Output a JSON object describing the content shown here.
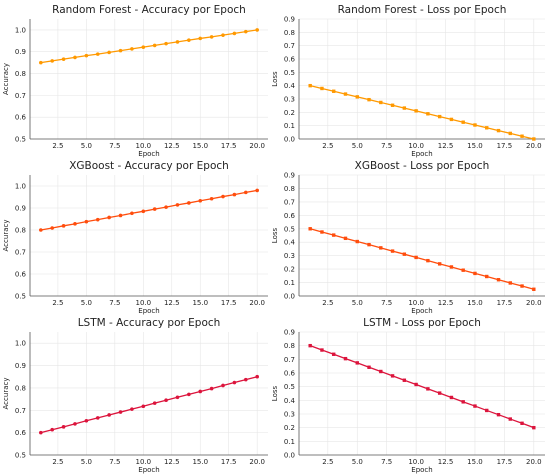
{
  "chart_data": [
    {
      "type": "line",
      "title": "Random Forest - Accuracy por Epoch",
      "xlabel": "Epoch",
      "ylabel": "Accuracy",
      "xlim": [
        0.05,
        20.95
      ],
      "ylim": [
        0.5,
        1.05
      ],
      "x_ticks": [
        2.5,
        5.0,
        7.5,
        10.0,
        12.5,
        15.0,
        17.5,
        20.0
      ],
      "x_tick_labels": [
        "2.5",
        "5.0",
        "7.5",
        "10.0",
        "12.5",
        "15.0",
        "17.5",
        "20.0"
      ],
      "y_ticks": [
        0.5,
        0.6,
        0.7,
        0.8,
        0.9,
        1.0
      ],
      "y_tick_labels": [
        "0.5",
        "0.6",
        "0.7",
        "0.8",
        "0.9",
        "1.0"
      ],
      "grid": true,
      "color": "#ff9900",
      "marker": "circle",
      "series": [
        {
          "name": "",
          "x": [
            1,
            2,
            3,
            4,
            5,
            6,
            7,
            8,
            9,
            10,
            11,
            12,
            13,
            14,
            15,
            16,
            17,
            18,
            19,
            20
          ],
          "values": [
            0.85,
            0.858,
            0.866,
            0.874,
            0.882,
            0.889,
            0.897,
            0.905,
            0.913,
            0.921,
            0.929,
            0.937,
            0.945,
            0.953,
            0.961,
            0.968,
            0.976,
            0.984,
            0.992,
            1.0
          ]
        }
      ]
    },
    {
      "type": "line",
      "title": "Random Forest - Loss por Epoch",
      "xlabel": "Epoch",
      "ylabel": "Loss",
      "xlim": [
        0.05,
        20.95
      ],
      "ylim": [
        0.0,
        0.9
      ],
      "x_ticks": [
        2.5,
        5.0,
        7.5,
        10.0,
        12.5,
        15.0,
        17.5,
        20.0
      ],
      "x_tick_labels": [
        "2.5",
        "5.0",
        "7.5",
        "10.0",
        "12.5",
        "15.0",
        "17.5",
        "20.0"
      ],
      "y_ticks": [
        0.0,
        0.1,
        0.2,
        0.3,
        0.4,
        0.5,
        0.6,
        0.7,
        0.8,
        0.9
      ],
      "y_tick_labels": [
        "0.0",
        "0.1",
        "0.2",
        "0.3",
        "0.4",
        "0.5",
        "0.6",
        "0.7",
        "0.8",
        "0.9"
      ],
      "grid": true,
      "color": "#ff9900",
      "marker": "square",
      "series": [
        {
          "name": "",
          "x": [
            1,
            2,
            3,
            4,
            5,
            6,
            7,
            8,
            9,
            10,
            11,
            12,
            13,
            14,
            15,
            16,
            17,
            18,
            19,
            20
          ],
          "values": [
            0.4,
            0.379,
            0.358,
            0.337,
            0.316,
            0.295,
            0.274,
            0.253,
            0.232,
            0.211,
            0.189,
            0.168,
            0.147,
            0.126,
            0.105,
            0.084,
            0.063,
            0.042,
            0.021,
            0.0
          ]
        }
      ]
    },
    {
      "type": "line",
      "title": "XGBoost - Accuracy por Epoch",
      "xlabel": "Epoch",
      "ylabel": "Accuracy",
      "xlim": [
        0.05,
        20.95
      ],
      "ylim": [
        0.5,
        1.05
      ],
      "x_ticks": [
        2.5,
        5.0,
        7.5,
        10.0,
        12.5,
        15.0,
        17.5,
        20.0
      ],
      "x_tick_labels": [
        "2.5",
        "5.0",
        "7.5",
        "10.0",
        "12.5",
        "15.0",
        "17.5",
        "20.0"
      ],
      "y_ticks": [
        0.5,
        0.6,
        0.7,
        0.8,
        0.9,
        1.0
      ],
      "y_tick_labels": [
        "0.5",
        "0.6",
        "0.7",
        "0.8",
        "0.9",
        "1.0"
      ],
      "grid": true,
      "color": "#ff4d0d",
      "marker": "circle",
      "series": [
        {
          "name": "",
          "x": [
            1,
            2,
            3,
            4,
            5,
            6,
            7,
            8,
            9,
            10,
            11,
            12,
            13,
            14,
            15,
            16,
            17,
            18,
            19,
            20
          ],
          "values": [
            0.8,
            0.809,
            0.819,
            0.828,
            0.838,
            0.847,
            0.857,
            0.866,
            0.876,
            0.885,
            0.895,
            0.904,
            0.914,
            0.923,
            0.933,
            0.942,
            0.952,
            0.961,
            0.971,
            0.98
          ]
        }
      ]
    },
    {
      "type": "line",
      "title": "XGBoost - Loss por Epoch",
      "xlabel": "Epoch",
      "ylabel": "Loss",
      "xlim": [
        0.05,
        20.95
      ],
      "ylim": [
        0.0,
        0.9
      ],
      "x_ticks": [
        2.5,
        5.0,
        7.5,
        10.0,
        12.5,
        15.0,
        17.5,
        20.0
      ],
      "x_tick_labels": [
        "2.5",
        "5.0",
        "7.5",
        "10.0",
        "12.5",
        "15.0",
        "17.5",
        "20.0"
      ],
      "y_ticks": [
        0.0,
        0.1,
        0.2,
        0.3,
        0.4,
        0.5,
        0.6,
        0.7,
        0.8,
        0.9
      ],
      "y_tick_labels": [
        "0.0",
        "0.1",
        "0.2",
        "0.3",
        "0.4",
        "0.5",
        "0.6",
        "0.7",
        "0.8",
        "0.9"
      ],
      "grid": true,
      "color": "#ff4d0d",
      "marker": "square",
      "series": [
        {
          "name": "",
          "x": [
            1,
            2,
            3,
            4,
            5,
            6,
            7,
            8,
            9,
            10,
            11,
            12,
            13,
            14,
            15,
            16,
            17,
            18,
            19,
            20
          ],
          "values": [
            0.5,
            0.476,
            0.453,
            0.429,
            0.405,
            0.382,
            0.358,
            0.334,
            0.311,
            0.287,
            0.263,
            0.239,
            0.216,
            0.192,
            0.168,
            0.145,
            0.121,
            0.097,
            0.074,
            0.05
          ]
        }
      ]
    },
    {
      "type": "line",
      "title": "LSTM - Accuracy por Epoch",
      "xlabel": "Epoch",
      "ylabel": "Accuracy",
      "xlim": [
        0.05,
        20.95
      ],
      "ylim": [
        0.5,
        1.05
      ],
      "x_ticks": [
        2.5,
        5.0,
        7.5,
        10.0,
        12.5,
        15.0,
        17.5,
        20.0
      ],
      "x_tick_labels": [
        "2.5",
        "5.0",
        "7.5",
        "10.0",
        "12.5",
        "15.0",
        "17.5",
        "20.0"
      ],
      "y_ticks": [
        0.5,
        0.6,
        0.7,
        0.8,
        0.9,
        1.0
      ],
      "y_tick_labels": [
        "0.5",
        "0.6",
        "0.7",
        "0.8",
        "0.9",
        "1.0"
      ],
      "grid": true,
      "color": "#dc143c",
      "marker": "circle",
      "series": [
        {
          "name": "",
          "x": [
            1,
            2,
            3,
            4,
            5,
            6,
            7,
            8,
            9,
            10,
            11,
            12,
            13,
            14,
            15,
            16,
            17,
            18,
            19,
            20
          ],
          "values": [
            0.6,
            0.613,
            0.626,
            0.639,
            0.653,
            0.666,
            0.679,
            0.692,
            0.705,
            0.718,
            0.732,
            0.745,
            0.758,
            0.771,
            0.784,
            0.797,
            0.811,
            0.824,
            0.837,
            0.85
          ]
        }
      ]
    },
    {
      "type": "line",
      "title": "LSTM - Loss por Epoch",
      "xlabel": "Epoch",
      "ylabel": "Loss",
      "xlim": [
        0.05,
        20.95
      ],
      "ylim": [
        0.0,
        0.9
      ],
      "x_ticks": [
        2.5,
        5.0,
        7.5,
        10.0,
        12.5,
        15.0,
        17.5,
        20.0
      ],
      "x_tick_labels": [
        "2.5",
        "5.0",
        "7.5",
        "10.0",
        "12.5",
        "15.0",
        "17.5",
        "20.0"
      ],
      "y_ticks": [
        0.0,
        0.1,
        0.2,
        0.3,
        0.4,
        0.5,
        0.6,
        0.7,
        0.8,
        0.9
      ],
      "y_tick_labels": [
        "0.0",
        "0.1",
        "0.2",
        "0.3",
        "0.4",
        "0.5",
        "0.6",
        "0.7",
        "0.8",
        "0.9"
      ],
      "grid": true,
      "color": "#dc143c",
      "marker": "square",
      "series": [
        {
          "name": "",
          "x": [
            1,
            2,
            3,
            4,
            5,
            6,
            7,
            8,
            9,
            10,
            11,
            12,
            13,
            14,
            15,
            16,
            17,
            18,
            19,
            20
          ],
          "values": [
            0.8,
            0.768,
            0.737,
            0.705,
            0.674,
            0.642,
            0.611,
            0.579,
            0.547,
            0.516,
            0.484,
            0.453,
            0.421,
            0.389,
            0.358,
            0.326,
            0.295,
            0.263,
            0.232,
            0.2
          ]
        }
      ]
    }
  ]
}
